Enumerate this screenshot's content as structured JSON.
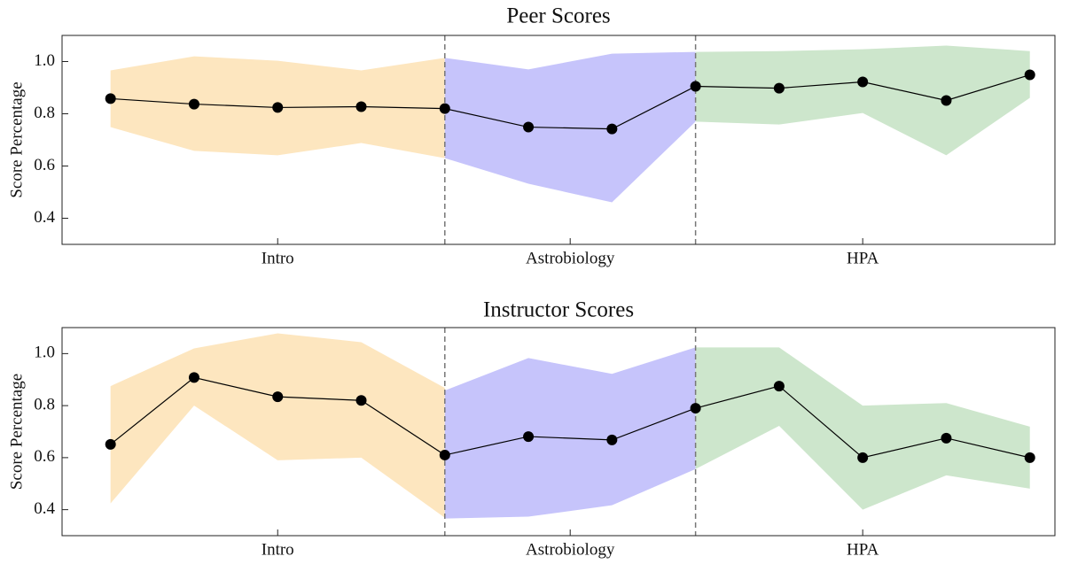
{
  "chart_data": [
    {
      "type": "band-line",
      "title": "Peer Scores",
      "ylabel": "Score Percentage",
      "x": [
        0,
        1,
        2,
        3,
        4,
        5,
        6,
        7,
        8,
        9,
        10,
        11
      ],
      "xlim": [
        -0.58,
        11.3
      ],
      "ylim": [
        0.3,
        1.1
      ],
      "yticks": [
        0.4,
        0.6,
        0.8,
        {
          "value": 1,
          "label": "1.0"
        }
      ],
      "xticks": [
        {
          "value": 2,
          "label": "Intro"
        },
        {
          "value": 5.5,
          "label": "Astrobiology"
        },
        {
          "value": 9,
          "label": "HPA"
        }
      ],
      "vlines": [
        4,
        7
      ],
      "mean": {
        "color": "#000000",
        "values": [
          0.858,
          0.837,
          0.824,
          0.827,
          0.82,
          0.749,
          0.742,
          0.905,
          0.898,
          0.922,
          0.851,
          0.949
        ]
      },
      "bands": [
        {
          "color": "#fde6bf",
          "x": [
            0,
            1,
            2,
            3,
            4
          ],
          "upper": [
            0.966,
            1.02,
            1.003,
            0.966,
            1.014
          ],
          "lower": [
            0.749,
            0.658,
            0.641,
            0.688,
            0.63
          ]
        },
        {
          "color": "#c6c4fb",
          "x": [
            4,
            5,
            6,
            7
          ],
          "upper": [
            1.014,
            0.97,
            1.03,
            1.037
          ],
          "lower": [
            0.63,
            0.532,
            0.461,
            0.77
          ]
        },
        {
          "color": "#cde6cc",
          "x": [
            7,
            8,
            9,
            10,
            11
          ],
          "upper": [
            1.037,
            1.04,
            1.047,
            1.061,
            1.04
          ],
          "lower": [
            0.77,
            0.759,
            0.803,
            0.641,
            0.861
          ]
        }
      ]
    },
    {
      "type": "band-line",
      "title": "Instructor Scores",
      "ylabel": "Score Percentage",
      "x": [
        0,
        1,
        2,
        3,
        4,
        5,
        6,
        7,
        8,
        9,
        10,
        11
      ],
      "xlim": [
        -0.58,
        11.3
      ],
      "ylim": [
        0.3,
        1.1
      ],
      "yticks": [
        0.4,
        0.6,
        0.8,
        {
          "value": 1,
          "label": "1.0"
        }
      ],
      "xticks": [
        {
          "value": 2,
          "label": "Intro"
        },
        {
          "value": 5.5,
          "label": "Astrobiology"
        },
        {
          "value": 9,
          "label": "HPA"
        }
      ],
      "vlines": [
        4,
        7
      ],
      "mean": {
        "color": "#000000",
        "values": [
          0.651,
          0.908,
          0.834,
          0.82,
          0.61,
          0.681,
          0.668,
          0.79,
          0.875,
          0.6,
          0.675,
          0.6
        ]
      },
      "bands": [
        {
          "color": "#fde6bf",
          "x": [
            0,
            1,
            2,
            3,
            4
          ],
          "upper": [
            0.875,
            1.02,
            1.078,
            1.044,
            0.868
          ],
          "lower": [
            0.424,
            0.8,
            0.59,
            0.6,
            0.369
          ]
        },
        {
          "color": "#c6c4fb",
          "x": [
            4,
            5,
            6,
            7
          ],
          "upper": [
            0.858,
            0.983,
            0.922,
            1.024
          ],
          "lower": [
            0.366,
            0.373,
            0.417,
            0.556
          ]
        },
        {
          "color": "#cde6cc",
          "x": [
            7,
            8,
            9,
            10,
            11
          ],
          "upper": [
            1.024,
            1.024,
            0.8,
            0.81,
            0.719
          ],
          "lower": [
            0.556,
            0.722,
            0.4,
            0.532,
            0.481
          ]
        }
      ]
    }
  ]
}
